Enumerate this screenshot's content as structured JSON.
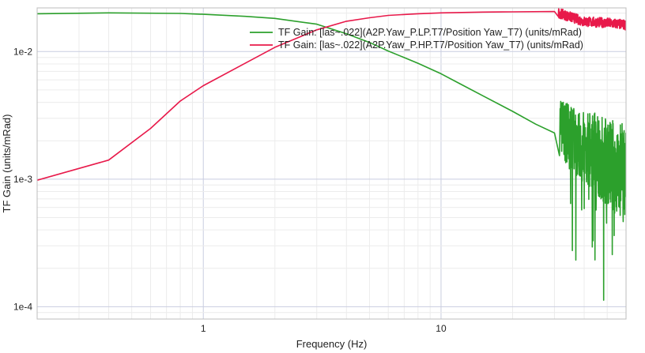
{
  "chart_data": {
    "type": "line",
    "title": "",
    "xlabel": "Frequency (Hz)",
    "ylabel": "TF Gain  (units/mRad)",
    "xscale": "log",
    "yscale": "log",
    "xlim": [
      0.2,
      60
    ],
    "ylim": [
      8e-05,
      0.022
    ],
    "x_ticks": [
      {
        "value": 1,
        "label": "1"
      },
      {
        "value": 10,
        "label": "10"
      }
    ],
    "y_ticks": [
      {
        "value": 0.0001,
        "label": "1e-4"
      },
      {
        "value": 0.001,
        "label": "1e-3"
      },
      {
        "value": 0.01,
        "label": "1e-2"
      }
    ],
    "grid": true,
    "legend_position": "top-right",
    "series": [
      {
        "name": "TF Gain: [las~.022](A2P.Yaw_P.LP.T7/Position Yaw_T7) (units/mRad)",
        "color": "#2ca02c",
        "x": [
          0.2,
          0.4,
          0.8,
          1.0,
          1.5,
          2.0,
          3.0,
          4.0,
          5.0,
          6.0,
          8.0,
          10.0,
          12.0,
          15.0,
          20.0,
          25.0,
          30.0,
          32.0,
          35.0,
          40.0,
          45.0,
          50.0,
          55.0,
          60.0
        ],
        "y": [
          0.0198,
          0.0201,
          0.0199,
          0.0196,
          0.0189,
          0.0182,
          0.0164,
          0.0138,
          0.0118,
          0.0101,
          0.0081,
          0.0067,
          0.0056,
          0.0045,
          0.0034,
          0.0027,
          0.0023,
          0.0028,
          0.0022,
          0.0019,
          0.0017,
          0.0015,
          0.0013,
          0.0012
        ]
      },
      {
        "name": "TF Gain: [las~.022](A2P.Yaw_P.HP.T7/Position Yaw_T7) (units/mRad)",
        "color": "#e8194a",
        "x": [
          0.2,
          0.4,
          0.6,
          0.8,
          1.0,
          1.5,
          2.0,
          3.0,
          4.0,
          5.0,
          6.0,
          8.0,
          10.0,
          15.0,
          20.0,
          30.0,
          40.0,
          50.0,
          60.0
        ],
        "y": [
          0.00098,
          0.00141,
          0.0025,
          0.0041,
          0.0054,
          0.0081,
          0.0108,
          0.0148,
          0.0173,
          0.0184,
          0.0192,
          0.0198,
          0.0201,
          0.0204,
          0.0205,
          0.0206,
          0.0172,
          0.0168,
          0.0162
        ]
      }
    ]
  }
}
